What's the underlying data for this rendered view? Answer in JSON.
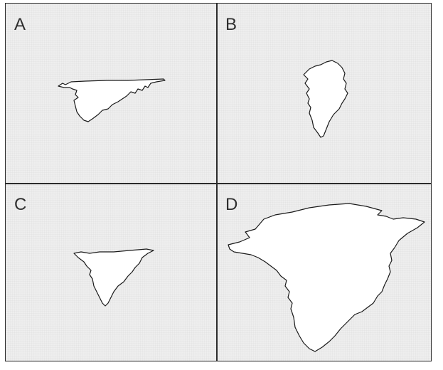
{
  "panels": [
    {
      "label": "A",
      "shape_icon": "greenland-outline-flattened-wide"
    },
    {
      "label": "B",
      "shape_icon": "greenland-outline-true-shape"
    },
    {
      "label": "C",
      "shape_icon": "greenland-outline-flattened"
    },
    {
      "label": "D",
      "shape_icon": "greenland-outline-enlarged"
    }
  ],
  "colors": {
    "background": "#eeeeee",
    "border": "#2b2b2b",
    "shape_fill": "#ffffff",
    "shape_stroke": "#1a1a1a"
  }
}
